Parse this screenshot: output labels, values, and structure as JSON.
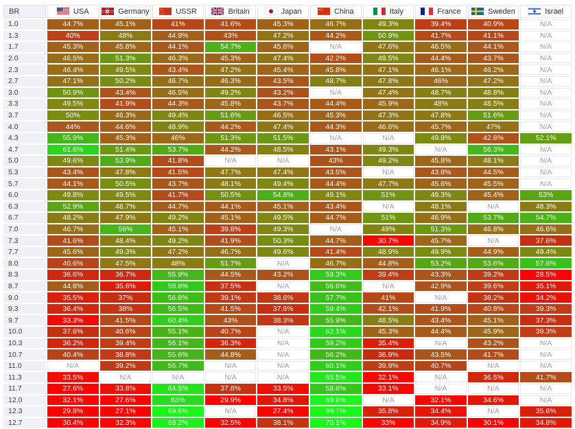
{
  "table": {
    "br_header": "BR",
    "na_label": "N/A",
    "columns": [
      {
        "label": "USA",
        "flag": "usa-flag-icon"
      },
      {
        "label": "Germany",
        "flag": "germany-flag-icon"
      },
      {
        "label": "USSR",
        "flag": "ussr-flag-icon"
      },
      {
        "label": "Britain",
        "flag": "britain-flag-icon"
      },
      {
        "label": "Japan",
        "flag": "japan-flag-icon"
      },
      {
        "label": "China",
        "flag": "china-flag-icon"
      },
      {
        "label": "Italy",
        "flag": "italy-flag-icon"
      },
      {
        "label": "France",
        "flag": "france-flag-icon"
      },
      {
        "label": "Sweden",
        "flag": "sweden-flag-icon"
      },
      {
        "label": "Israel",
        "flag": "israel-flag-icon"
      }
    ],
    "rows": [
      {
        "br": "1.0",
        "values": [
          "44.7%",
          "45.1%",
          "41%",
          "41.6%",
          "45.3%",
          "46.7%",
          "49.3%",
          "39.4%",
          "40.9%",
          "N/A"
        ]
      },
      {
        "br": "1.3",
        "values": [
          "40%",
          "48%",
          "44.9%",
          "43%",
          "47.2%",
          "44.2%",
          "50.9%",
          "41.7%",
          "41.1%",
          "N/A"
        ]
      },
      {
        "br": "1.7",
        "values": [
          "45.3%",
          "45.8%",
          "44.1%",
          "54.7%",
          "45.6%",
          "N/A",
          "47.6%",
          "46.5%",
          "44.1%",
          "N/A"
        ]
      },
      {
        "br": "2.0",
        "values": [
          "46.5%",
          "51.3%",
          "46.3%",
          "45.3%",
          "47.4%",
          "42.2%",
          "49.5%",
          "44.4%",
          "43.7%",
          "N/A"
        ]
      },
      {
        "br": "2.3",
        "values": [
          "46.4%",
          "49.5%",
          "43.4%",
          "47.2%",
          "45.4%",
          "45.8%",
          "47.1%",
          "46.1%",
          "46.2%",
          "N/A"
        ]
      },
      {
        "br": "2.7",
        "values": [
          "47.1%",
          "50.2%",
          "46.7%",
          "46.3%",
          "43.5%",
          "48.7%",
          "47.8%",
          "46%",
          "47.2%",
          "N/A"
        ]
      },
      {
        "br": "3.0",
        "values": [
          "50.9%",
          "43.4%",
          "46.5%",
          "49.2%",
          "43.2%",
          "N/A",
          "47.4%",
          "48.7%",
          "48.8%",
          "N/A"
        ]
      },
      {
        "br": "3.3",
        "values": [
          "49.5%",
          "41.9%",
          "44.3%",
          "45.8%",
          "43.7%",
          "44.4%",
          "45.9%",
          "48%",
          "48.5%",
          "N/A"
        ]
      },
      {
        "br": "3.7",
        "values": [
          "50%",
          "46.3%",
          "49.4%",
          "51.6%",
          "46.5%",
          "45.3%",
          "47.3%",
          "47.8%",
          "51.6%",
          "N/A"
        ]
      },
      {
        "br": "4.0",
        "values": [
          "44%",
          "44.6%",
          "48.9%",
          "44.2%",
          "47.4%",
          "44.3%",
          "46.6%",
          "45.7%",
          "47%",
          "N/A"
        ]
      },
      {
        "br": "4.3",
        "values": [
          "55.9%",
          "45.3%",
          "46%",
          "51.3%",
          "51.5%",
          "N/A",
          "N/A",
          "49.8%",
          "42.8%",
          "52.1%"
        ]
      },
      {
        "br": "4.7",
        "values": [
          "61.6%",
          "51.4%",
          "53.7%",
          "44.2%",
          "48.5%",
          "43.1%",
          "49.3%",
          "N/A",
          "56.3%",
          "N/A"
        ]
      },
      {
        "br": "5.0",
        "values": [
          "49.6%",
          "53.9%",
          "41.8%",
          "N/A",
          "N/A",
          "43%",
          "49.2%",
          "45.8%",
          "48.1%",
          "N/A"
        ]
      },
      {
        "br": "5.3",
        "values": [
          "43.4%",
          "47.8%",
          "41.5%",
          "47.7%",
          "47.4%",
          "43.5%",
          "N/A",
          "43.8%",
          "44.5%",
          "N/A"
        ]
      },
      {
        "br": "5.7",
        "values": [
          "44.1%",
          "50.5%",
          "43.7%",
          "48.1%",
          "49.4%",
          "44.4%",
          "47.7%",
          "45.6%",
          "45.5%",
          "N/A"
        ]
      },
      {
        "br": "6.0",
        "values": [
          "49.8%",
          "49.5%",
          "41.7%",
          "50.5%",
          "54.8%",
          "49.1%",
          "51%",
          "49.3%",
          "45.4%",
          "53%"
        ]
      },
      {
        "br": "6.3",
        "values": [
          "52.9%",
          "48.7%",
          "44.7%",
          "44.1%",
          "45.1%",
          "43.4%",
          "N/A",
          "48.1%",
          "N/A",
          "48.3%"
        ]
      },
      {
        "br": "6.7",
        "values": [
          "48.2%",
          "47.9%",
          "49.2%",
          "45.1%",
          "49.5%",
          "44.7%",
          "51%",
          "46.9%",
          "53.7%",
          "54.7%"
        ]
      },
      {
        "br": "7.0",
        "values": [
          "46.7%",
          "56%",
          "45.1%",
          "39.8%",
          "49.3%",
          "N/A",
          "49%",
          "51.3%",
          "46.8%",
          "46.6%"
        ]
      },
      {
        "br": "7.3",
        "values": [
          "41.6%",
          "48.4%",
          "49.2%",
          "41.9%",
          "50.3%",
          "44.7%",
          "30.7%",
          "45.7%",
          "N/A",
          "37.6%"
        ]
      },
      {
        "br": "7.7",
        "values": [
          "45.6%",
          "49.3%",
          "47.2%",
          "46.7%",
          "49.6%",
          "41.4%",
          "48.9%",
          "49.9%",
          "44.9%",
          "49.4%"
        ]
      },
      {
        "br": "8.0",
        "values": [
          "40.6%",
          "47.5%",
          "48%",
          "51.7%",
          "N/A",
          "46.7%",
          "44.8%",
          "53.2%",
          "53.6%",
          "57.6%"
        ]
      },
      {
        "br": "8.3",
        "values": [
          "36.6%",
          "36.7%",
          "55.9%",
          "44.5%",
          "43.2%",
          "59.3%",
          "39.4%",
          "43.3%",
          "39.2%",
          "28.5%"
        ]
      },
      {
        "br": "8.7",
        "values": [
          "44.8%",
          "35.6%",
          "58.8%",
          "37.5%",
          "N/A",
          "56.6%",
          "N/A",
          "42.9%",
          "39.6%",
          "35.1%"
        ]
      },
      {
        "br": "9.0",
        "values": [
          "35.5%",
          "37%",
          "56.8%",
          "39.1%",
          "38.6%",
          "57.7%",
          "41%",
          "N/A",
          "38.2%",
          "34.2%"
        ]
      },
      {
        "br": "9.3",
        "values": [
          "36.4%",
          "38%",
          "56.5%",
          "41.5%",
          "37.6%",
          "59.4%",
          "42.1%",
          "41.9%",
          "40.8%",
          "39.3%"
        ]
      },
      {
        "br": "9.7",
        "values": [
          "33.3%",
          "41.5%",
          "60.4%",
          "43%",
          "38.3%",
          "55.9%",
          "48.5%",
          "43.4%",
          "45.1%",
          "37.3%"
        ]
      },
      {
        "br": "10.0",
        "values": [
          "37.6%",
          "40.6%",
          "55.1%",
          "40.7%",
          "N/A",
          "62.1%",
          "45.3%",
          "44.4%",
          "45.9%",
          "39.3%"
        ]
      },
      {
        "br": "10.3",
        "values": [
          "36.2%",
          "39.4%",
          "56.1%",
          "36.3%",
          "N/A",
          "59.2%",
          "35.4%",
          "N/A",
          "43.2%",
          "N/A"
        ]
      },
      {
        "br": "10.7",
        "values": [
          "40.4%",
          "38.8%",
          "55.6%",
          "44.8%",
          "N/A",
          "56.2%",
          "36.9%",
          "43.5%",
          "41.7%",
          "N/A"
        ]
      },
      {
        "br": "11.0",
        "values": [
          "N/A",
          "39.2%",
          "56.7%",
          "N/A",
          "N/A",
          "60.1%",
          "39.9%",
          "40.7%",
          "N/A",
          "N/A"
        ]
      },
      {
        "br": "11.3",
        "values": [
          "33.5%",
          "N/A",
          "N/A",
          "N/A",
          "N/A",
          "65.5%",
          "32.1%",
          "N/A",
          "36.5%",
          "41.7%"
        ]
      },
      {
        "br": "11.7",
        "values": [
          "27.6%",
          "33.8%",
          "64.5%",
          "37.8%",
          "33.5%",
          "58.6%",
          "33.1%",
          "N/A",
          "N/A",
          "N/A"
        ]
      },
      {
        "br": "12.0",
        "values": [
          "32.1%",
          "27.6%",
          "63%",
          "29.9%",
          "34.8%",
          "69.9%",
          "N/A",
          "32.1%",
          "34.6%",
          "N/A"
        ]
      },
      {
        "br": "12.3",
        "values": [
          "29.8%",
          "27.1%",
          "69.6%",
          "N/A",
          "27.4%",
          "69.7%",
          "35.8%",
          "34.4%",
          "N/A",
          "35.6%"
        ]
      },
      {
        "br": "12.7",
        "values": [
          "30.4%",
          "32.3%",
          "68.2%",
          "32.5%",
          "38.1%",
          "70.1%",
          "33%",
          "34.9%",
          "30.1%",
          "34.8%"
        ]
      }
    ]
  },
  "colors": {
    "cell_text": "#ffffff",
    "na_text": "#a0a0a8",
    "na_bg": "#ffffff",
    "br_col_bg": "#eff1f7",
    "header_text": "#2e2e38",
    "br_text": "#3c3c46",
    "scale": [
      [
        27,
        "#ff0000"
      ],
      [
        33,
        "#f50801"
      ],
      [
        35,
        "#e01a08"
      ],
      [
        37,
        "#c92c10"
      ],
      [
        40,
        "#bb4118"
      ],
      [
        44,
        "#a8581c"
      ],
      [
        46,
        "#9c6819"
      ],
      [
        48,
        "#8b7a16"
      ],
      [
        50,
        "#7a8c12"
      ],
      [
        52,
        "#669c14"
      ],
      [
        54,
        "#50ac16"
      ],
      [
        56,
        "#44b61a"
      ],
      [
        59,
        "#33c81b"
      ],
      [
        62,
        "#2ad71d"
      ],
      [
        65,
        "#24e41d"
      ],
      [
        70,
        "#1bf51b"
      ]
    ]
  }
}
